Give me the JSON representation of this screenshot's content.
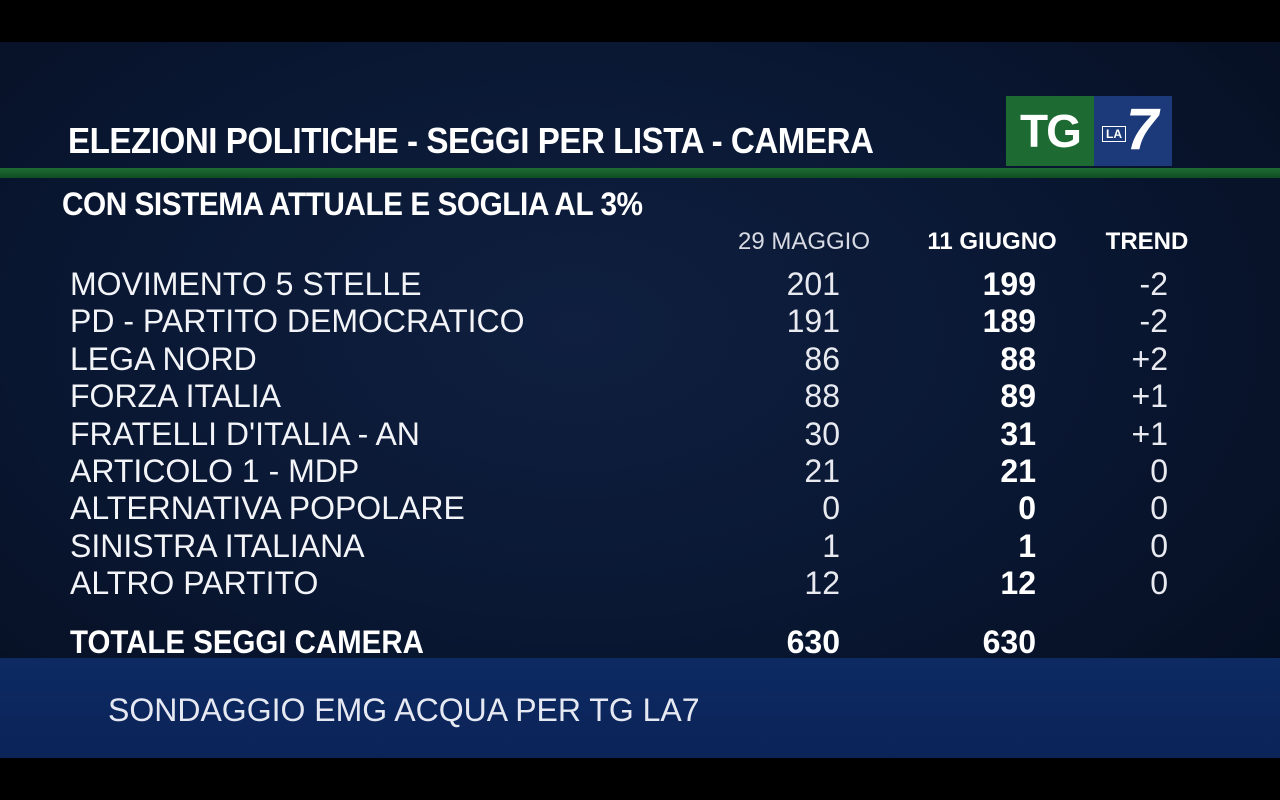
{
  "header": {
    "title": "ELEZIONI POLITICHE - SEGGI  PER  LISTA - CAMERA",
    "subtitle": "CON SISTEMA ATTUALE E SOGLIA AL 3%"
  },
  "logo": {
    "tg": "TG",
    "la": "LA",
    "seven": "7",
    "tg_color": "#1d6b33",
    "la7_color": "#1c3a7a"
  },
  "table": {
    "columns": {
      "date1": "29 MAGGIO",
      "date2": "11 GIUGNO",
      "trend": "TREND"
    },
    "rows": [
      {
        "party": "MOVIMENTO 5 STELLE",
        "v1": "201",
        "v2": "199",
        "trend": "-2"
      },
      {
        "party": "PD - PARTITO DEMOCRATICO",
        "v1": "191",
        "v2": "189",
        "trend": "-2"
      },
      {
        "party": "LEGA NORD",
        "v1": "86",
        "v2": "88",
        "trend": "+2"
      },
      {
        "party": "FORZA ITALIA",
        "v1": "88",
        "v2": "89",
        "trend": "+1"
      },
      {
        "party": "FRATELLI D'ITALIA - AN",
        "v1": "30",
        "v2": "31",
        "trend": "+1"
      },
      {
        "party": "ARTICOLO 1  - MDP",
        "v1": "21",
        "v2": "21",
        "trend": "0"
      },
      {
        "party": "ALTERNATIVA POPOLARE",
        "v1": "0",
        "v2": "0",
        "trend": "0"
      },
      {
        "party": "SINISTRA ITALIANA",
        "v1": "1",
        "v2": "1",
        "trend": "0"
      },
      {
        "party": "ALTRO PARTITO",
        "v1": "12",
        "v2": "12",
        "trend": "0"
      }
    ],
    "total": {
      "label": "TOTALE SEGGI CAMERA",
      "v1": "630",
      "v2": "630"
    }
  },
  "footer": {
    "source": "SONDAGGIO EMG ACQUA PER TG LA7"
  }
}
